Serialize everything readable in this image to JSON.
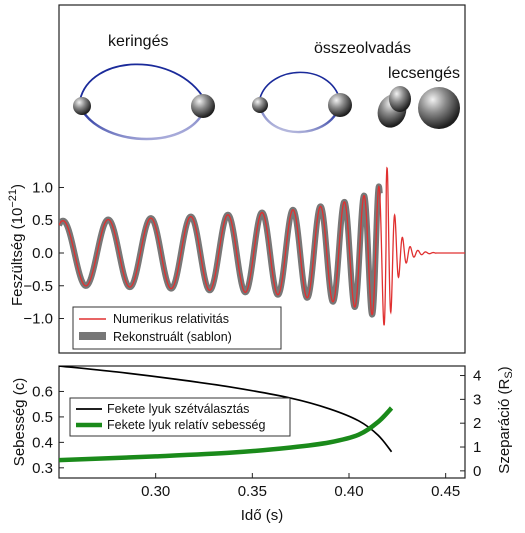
{
  "stages": {
    "orbit": "keringés",
    "merger": "összeolvadás",
    "ringdown": "lecsengés"
  },
  "chart_data": [
    {
      "type": "line",
      "ylabel_main": "Feszültség (10",
      "ylabel_exp": "−21",
      "ylabel_close": ")",
      "xlim": [
        0.25,
        0.46
      ],
      "ylim": [
        -1.45,
        1.45
      ],
      "yticks": [
        "1.0",
        "0.5",
        "0.0",
        "−0.5",
        "−1.0"
      ],
      "ytick_values": [
        1.0,
        0.5,
        0.0,
        -0.5,
        -1.0
      ],
      "waveform": {
        "t_merger": 0.42,
        "amplitude_initial": 0.45,
        "amplitude_peak": 1.3,
        "ringdown_tail": 0.46
      },
      "series": [
        {
          "name": "Numerikus relativitás",
          "color": "#e03030"
        },
        {
          "name": "Rekonstruált (sablon)",
          "color": "#777777"
        }
      ],
      "legend_position": "bottom-left"
    },
    {
      "type": "line",
      "xlabel": "Idő (s)",
      "ylabel_left": "Sebesség (c)",
      "ylabel_right": "Szeparáció (R",
      "ylabel_right_sub": "S",
      "ylabel_right_close": ")",
      "xlim": [
        0.25,
        0.46
      ],
      "xticks": [
        "0.30",
        "0.35",
        "0.40",
        "0.45"
      ],
      "xtick_values": [
        0.3,
        0.35,
        0.4,
        0.45
      ],
      "ylim_left": [
        0.26,
        0.7
      ],
      "yticks_left": [
        "0.6",
        "0.5",
        "0.4",
        "0.3"
      ],
      "ytick_left_values": [
        0.6,
        0.5,
        0.4,
        0.3
      ],
      "ylim_right": [
        -0.3,
        4.4
      ],
      "yticks_right": [
        "4",
        "3",
        "2",
        "1",
        "0"
      ],
      "ytick_right_values": [
        4,
        3,
        2,
        1,
        0
      ],
      "series": [
        {
          "name": "Fekete lyuk szétválasztás",
          "axis": "right",
          "color": "#000000",
          "x": [
            0.25,
            0.28,
            0.31,
            0.34,
            0.37,
            0.39,
            0.405,
            0.415,
            0.422
          ],
          "y": [
            4.4,
            4.15,
            3.85,
            3.5,
            3.05,
            2.6,
            2.1,
            1.5,
            0.8
          ]
        },
        {
          "name": "Fekete lyuk relatív sebesség",
          "axis": "left",
          "color": "#1a8a1a",
          "x": [
            0.25,
            0.3,
            0.34,
            0.37,
            0.39,
            0.405,
            0.415,
            0.422
          ],
          "y": [
            0.33,
            0.345,
            0.36,
            0.38,
            0.4,
            0.43,
            0.48,
            0.535
          ]
        }
      ],
      "legend_position": "top-left"
    }
  ]
}
